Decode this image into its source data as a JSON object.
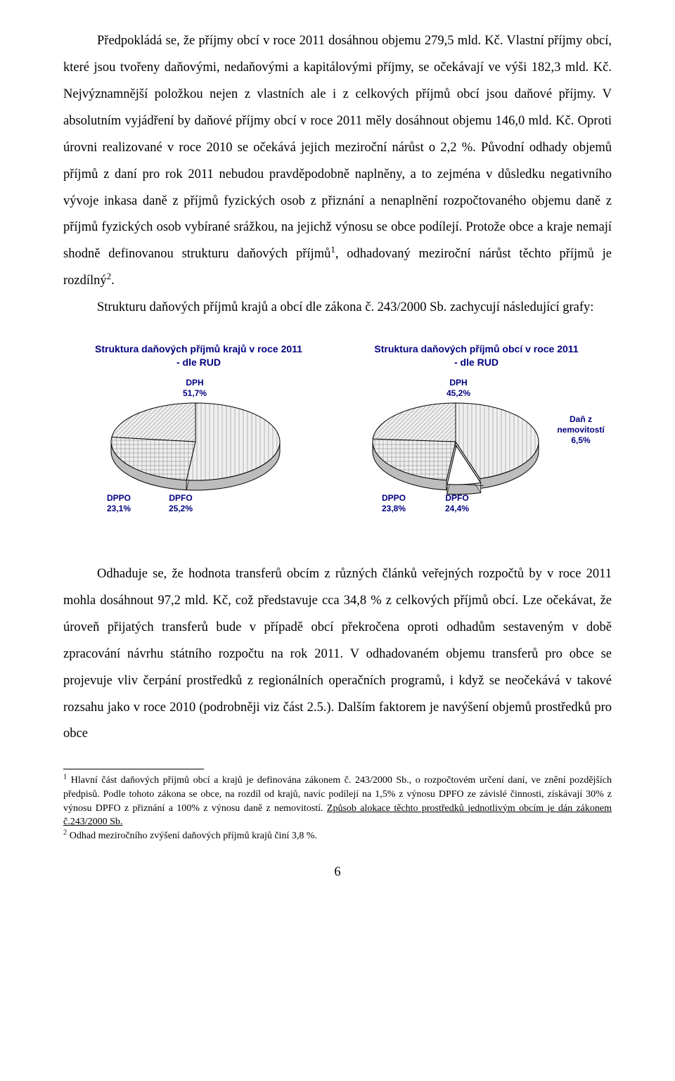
{
  "paragraphs": {
    "p1": "Předpokládá se, že příjmy obcí v roce 2011 dosáhnou objemu 279,5 mld. Kč. Vlastní příjmy obcí, které jsou tvořeny daňovými, nedaňovými a kapitálovými příjmy, se očekávají ve výši 182,3 mld. Kč. Nejvýznamnější položkou nejen z vlastních ale i z celkových příjmů obcí jsou daňové příjmy. V absolutním vyjádření by daňové příjmy obcí v roce 2011 měly dosáhnout objemu 146,0 mld. Kč. Oproti úrovni realizované v roce 2010 se očekává jejich meziroční nárůst o 2,2 %. Původní odhady objemů příjmů z daní pro rok 2011 nebudou pravděpodobně naplněny, a to zejména v důsledku negativního vývoje inkasa daně z příjmů fyzických osob z přiznání a nenaplnění rozpočtovaného objemu daně z příjmů fyzických osob vybírané srážkou, na jejichž výnosu se obce podílejí. Protože obce a kraje nemají shodně definovanou strukturu daňových příjmů",
    "p1_after_fn1": ", odhadovaný meziroční nárůst těchto příjmů je rozdílný",
    "p1_tail": ".",
    "p2": "Strukturu daňových příjmů krajů a obcí dle zákona č. 243/2000 Sb. zachycují následující grafy:",
    "p3": "Odhaduje se, že hodnota transferů obcím z různých článků veřejných rozpočtů by v roce 2011 mohla dosáhnout 97,2 mld. Kč, což představuje cca 34,8 % z celkových příjmů obcí. Lze očekávat, že úroveň přijatých transferů bude v případě obcí překročena oproti odhadům sestaveným v době zpracování návrhu státního rozpočtu na rok 2011. V odhadovaném objemu transferů pro obce se projevuje vliv čerpání prostředků z regionálních operačních programů, i když se neočekává v takové rozsahu jako v roce 2010 (podrobněji viz část 2.5.). Dalším faktorem je navýšení objemů prostředků pro obce"
  },
  "chart_left": {
    "title_line1": "Struktura daňových příjmů krajů v roce 2011",
    "title_line2": "- dle RUD",
    "type": "pie",
    "slices": [
      {
        "label": "DPH",
        "value": 51.7,
        "pct": "51,7%",
        "fill": "#f0f0f0",
        "hatch": "vlines"
      },
      {
        "label": "DPFO",
        "value": 25.2,
        "pct": "25,2%",
        "fill": "#f0f0f0",
        "hatch": "cross"
      },
      {
        "label": "DPPO",
        "value": 23.1,
        "pct": "23,1%",
        "fill": "#f0f0f0",
        "hatch": "diag"
      }
    ],
    "title_color": "#000080",
    "label_color": "#000080",
    "label_fontsize": 12,
    "stroke": "#000000",
    "stroke_width": 1,
    "background": "#ffffff"
  },
  "chart_right": {
    "title_line1": "Struktura daňových příjmů obcí v roce 2011",
    "title_line2": "- dle RUD",
    "type": "pie",
    "slices": [
      {
        "label": "DPH",
        "value": 45.2,
        "pct": "45,2%",
        "fill": "#f0f0f0",
        "hatch": "vlines"
      },
      {
        "label": "Daň z nemovitostí",
        "value": 6.5,
        "pct": "6,5%",
        "fill": "#ffffff",
        "hatch": "none",
        "exploded": true
      },
      {
        "label": "DPFO",
        "value": 24.4,
        "pct": "24,4%",
        "fill": "#f0f0f0",
        "hatch": "cross"
      },
      {
        "label": "DPPO",
        "value": 23.8,
        "pct": "23,8%",
        "fill": "#f0f0f0",
        "hatch": "diag"
      }
    ],
    "title_color": "#000080",
    "label_color": "#000080",
    "label_fontsize": 12,
    "stroke": "#000000",
    "stroke_width": 1,
    "background": "#ffffff"
  },
  "footnotes": {
    "fn1_num": "1",
    "fn1_a": " Hlavní část daňových příjmů obcí a krajů je definována zákonem č. 243/2000 Sb., o rozpočtovém určení daní, ve znění pozdějších předpisů. Podle tohoto zákona se obce, na rozdíl od krajů, navíc podílejí na 1,5% z výnosu DPFO ze závislé činnosti, získávají 30% z výnosu DPFO z přiznání a 100% z výnosu daně z nemovitostí. ",
    "fn1_underlined": "Způsob alokace těchto prostředků jednotlivým obcím je dán zákonem č.243/2000 Sb.",
    "fn2_num": "2",
    "fn2": " Odhad meziročního zvýšení daňových příjmů krajů činí 3,8 %."
  },
  "page_number": "6"
}
